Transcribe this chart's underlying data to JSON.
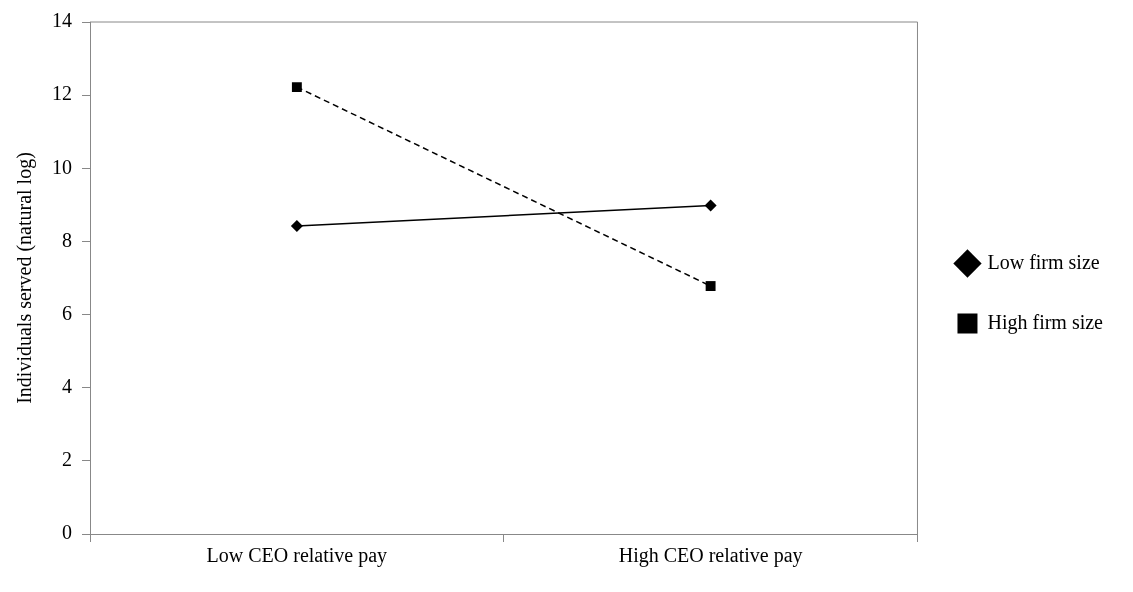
{
  "chart_data": {
    "type": "line",
    "xlabel": null,
    "ylabel": "Individuals served (natural log)",
    "categories": [
      "Low CEO relative pay",
      "High CEO relative pay"
    ],
    "series": [
      {
        "name": "Low firm size",
        "color": "#000000",
        "values": [
          8.42,
          8.98
        ],
        "marker": "diamond",
        "line_style": "solid"
      },
      {
        "name": "High firm size",
        "color": "#000000",
        "values": [
          12.22,
          6.78
        ],
        "marker": "square",
        "line_style": "dashed"
      }
    ],
    "ylim": [
      0,
      14
    ],
    "yticks": [
      0,
      2,
      4,
      6,
      8,
      10,
      12,
      14
    ],
    "grid": false,
    "legend": "right"
  }
}
